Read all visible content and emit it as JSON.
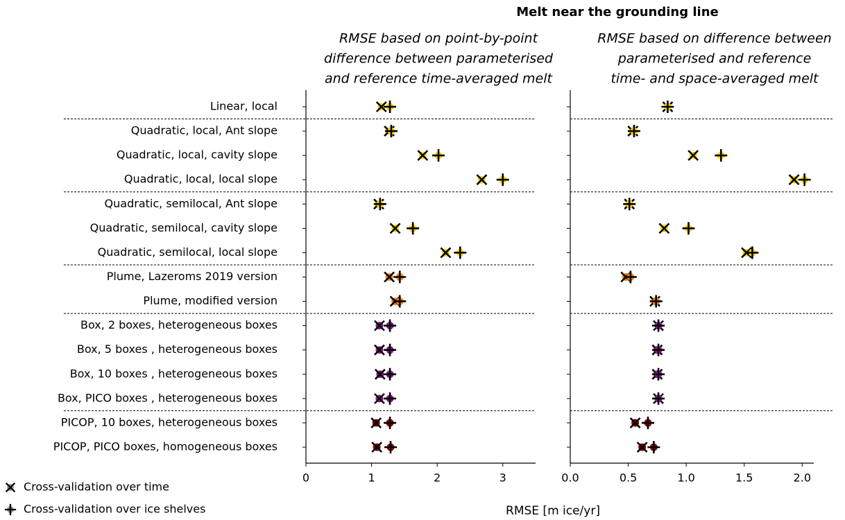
{
  "chart_data": {
    "type": "dot",
    "title": "Melt near the grounding line",
    "xlabel": "RMSE [m ice/yr]",
    "categories": [
      "Linear, local",
      "Quadratic, local, Ant slope",
      "Quadratic, local, cavity slope",
      "Quadratic, local, local slope",
      "Quadratic, semilocal, Ant slope",
      "Quadratic, semilocal, cavity slope",
      "Quadratic, semilocal, local slope",
      "Plume, Lazeroms 2019 version",
      "Plume, modified version",
      "Box, 2 boxes, heterogeneous boxes",
      "Box, 5 boxes , heterogeneous boxes",
      "Box, 10 boxes , heterogeneous boxes",
      "Box, PICO boxes , heterogeneous boxes",
      "PICOP, 10 boxes, heterogeneous boxes",
      "PICOP, PICO boxes, homogeneous boxes"
    ],
    "point_colors": [
      "#ffd700",
      "#ffd700",
      "#ffd700",
      "#ffd700",
      "#ffd700",
      "#ffd700",
      "#ffd700",
      "#f5820f",
      "#f5820f",
      "#8b1a8b",
      "#8b1a8b",
      "#8b1a8b",
      "#8b1a8b",
      "#8b0000",
      "#8b0000"
    ],
    "legend": [
      {
        "name": "Cross-validation over time",
        "marker": "x",
        "color": "#999999"
      },
      {
        "name": "Cross-validation over ice shelves",
        "marker": "+",
        "color": "#999999"
      }
    ],
    "panels": [
      {
        "subtitle": [
          "RMSE based on point-by-point",
          "difference between parameterised",
          "and reference time-averaged melt"
        ],
        "xlim": [
          0,
          3.5
        ],
        "xticks": [
          0,
          1,
          2,
          3
        ],
        "series": [
          {
            "marker": "x",
            "values": [
              1.15,
              1.27,
              1.78,
              2.68,
              1.11,
              1.36,
              2.13,
              1.27,
              1.36,
              1.12,
              1.12,
              1.13,
              1.12,
              1.07,
              1.08
            ]
          },
          {
            "marker": "+",
            "values": [
              1.28,
              1.3,
              2.02,
              3.0,
              1.13,
              1.63,
              2.35,
              1.43,
              1.43,
              1.28,
              1.28,
              1.28,
              1.28,
              1.28,
              1.29
            ]
          }
        ]
      },
      {
        "subtitle": [
          "RMSE based on difference between",
          "parameterised and reference",
          "time- and space-averaged melt"
        ],
        "xlim": [
          0,
          2.1
        ],
        "xticks": [
          {
            "value": 0,
            "label": "0.0"
          },
          {
            "value": 0.5,
            "label": "0.5"
          },
          {
            "value": 1,
            "label": "1.0"
          },
          {
            "value": 1.5,
            "label": "1.5"
          },
          {
            "value": 2,
            "label": "2.0"
          }
        ],
        "series": [
          {
            "marker": "x",
            "values": [
              0.84,
              0.54,
              1.06,
              1.93,
              0.51,
              0.81,
              1.52,
              0.48,
              0.73,
              0.76,
              0.75,
              0.75,
              0.76,
              0.56,
              0.62
            ]
          },
          {
            "marker": "+",
            "values": [
              0.84,
              0.55,
              1.3,
              2.02,
              0.51,
              1.02,
              1.57,
              0.52,
              0.74,
              0.76,
              0.76,
              0.76,
              0.76,
              0.67,
              0.72
            ]
          }
        ]
      }
    ]
  }
}
